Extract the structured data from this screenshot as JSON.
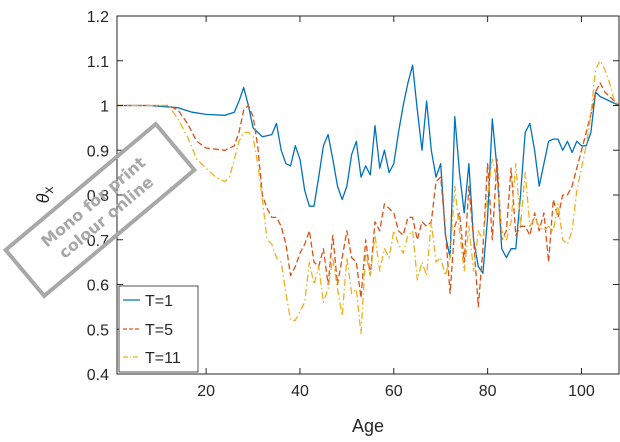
{
  "chart_data": {
    "type": "line",
    "title": "",
    "xlabel": "Age",
    "ylabel": "θ",
    "ylabel_subscript": "x",
    "xlim": [
      1,
      108
    ],
    "ylim": [
      0.4,
      1.2
    ],
    "xticks": [
      "20",
      "40",
      "60",
      "80",
      "100"
    ],
    "xtick_values": [
      20,
      40,
      60,
      80,
      100
    ],
    "yticks": [
      "0.4",
      "0.5",
      "0.6",
      "0.7",
      "0.8",
      "0.9",
      "1",
      "1.1",
      "1.2"
    ],
    "ytick_values": [
      0.4,
      0.5,
      0.6,
      0.7,
      0.8,
      0.9,
      1.0,
      1.1,
      1.2
    ],
    "grid": false,
    "legend_position": "bottom-left",
    "series": [
      {
        "name": "T=1",
        "color": "#0072BD",
        "style": "solid",
        "points": [
          [
            1,
            1.0
          ],
          [
            8,
            1.0
          ],
          [
            14,
            0.995
          ],
          [
            17,
            0.985
          ],
          [
            20,
            0.98
          ],
          [
            24,
            0.978
          ],
          [
            26,
            0.985
          ],
          [
            27,
            1.01
          ],
          [
            28,
            1.04
          ],
          [
            29,
            1.0
          ],
          [
            30,
            0.95
          ],
          [
            31,
            0.94
          ],
          [
            32,
            0.93
          ],
          [
            34,
            0.935
          ],
          [
            35,
            0.96
          ],
          [
            36,
            0.9
          ],
          [
            37,
            0.87
          ],
          [
            38,
            0.865
          ],
          [
            39,
            0.91
          ],
          [
            40,
            0.88
          ],
          [
            41,
            0.81
          ],
          [
            42,
            0.775
          ],
          [
            43,
            0.775
          ],
          [
            44,
            0.84
          ],
          [
            45,
            0.91
          ],
          [
            46,
            0.935
          ],
          [
            47,
            0.88
          ],
          [
            48,
            0.82
          ],
          [
            49,
            0.79
          ],
          [
            50,
            0.82
          ],
          [
            51,
            0.89
          ],
          [
            52,
            0.92
          ],
          [
            53,
            0.84
          ],
          [
            54,
            0.865
          ],
          [
            55,
            0.845
          ],
          [
            56,
            0.955
          ],
          [
            57,
            0.86
          ],
          [
            58,
            0.9
          ],
          [
            59,
            0.85
          ],
          [
            60,
            0.87
          ],
          [
            61,
            0.94
          ],
          [
            62,
            1.0
          ],
          [
            63,
            1.05
          ],
          [
            64,
            1.09
          ],
          [
            65,
            0.99
          ],
          [
            66,
            0.9
          ],
          [
            67,
            1.01
          ],
          [
            68,
            0.9
          ],
          [
            69,
            0.84
          ],
          [
            70,
            0.87
          ],
          [
            71,
            0.71
          ],
          [
            72,
            0.66
          ],
          [
            73,
            0.975
          ],
          [
            74,
            0.85
          ],
          [
            75,
            0.76
          ],
          [
            76,
            0.87
          ],
          [
            77,
            0.7
          ],
          [
            78,
            0.64
          ],
          [
            79,
            0.625
          ],
          [
            80,
            0.75
          ],
          [
            81,
            0.97
          ],
          [
            82,
            0.86
          ],
          [
            83,
            0.68
          ],
          [
            84,
            0.66
          ],
          [
            85,
            0.68
          ],
          [
            86,
            0.68
          ],
          [
            87,
            0.8
          ],
          [
            88,
            0.94
          ],
          [
            89,
            0.96
          ],
          [
            90,
            0.9
          ],
          [
            91,
            0.82
          ],
          [
            92,
            0.87
          ],
          [
            93,
            0.92
          ],
          [
            94,
            0.925
          ],
          [
            95,
            0.925
          ],
          [
            96,
            0.9
          ],
          [
            97,
            0.92
          ],
          [
            98,
            0.895
          ],
          [
            99,
            0.92
          ],
          [
            100,
            0.91
          ],
          [
            101,
            0.91
          ],
          [
            102,
            0.94
          ],
          [
            103,
            1.03
          ],
          [
            104,
            1.02
          ],
          [
            106,
            1.01
          ],
          [
            108,
            1.0
          ]
        ]
      },
      {
        "name": "T=5",
        "color": "#D95319",
        "style": "dashed",
        "points": [
          [
            1,
            1.0
          ],
          [
            12,
            1.0
          ],
          [
            14,
            0.99
          ],
          [
            16,
            0.96
          ],
          [
            18,
            0.92
          ],
          [
            20,
            0.905
          ],
          [
            24,
            0.9
          ],
          [
            26,
            0.91
          ],
          [
            27,
            0.94
          ],
          [
            28,
            0.99
          ],
          [
            29,
            1.0
          ],
          [
            30,
            0.975
          ],
          [
            31,
            0.91
          ],
          [
            32,
            0.8
          ],
          [
            33,
            0.77
          ],
          [
            34,
            0.75
          ],
          [
            35,
            0.75
          ],
          [
            36,
            0.73
          ],
          [
            37,
            0.69
          ],
          [
            38,
            0.62
          ],
          [
            39,
            0.64
          ],
          [
            40,
            0.67
          ],
          [
            41,
            0.69
          ],
          [
            42,
            0.72
          ],
          [
            43,
            0.65
          ],
          [
            44,
            0.64
          ],
          [
            45,
            0.68
          ],
          [
            46,
            0.6
          ],
          [
            47,
            0.71
          ],
          [
            48,
            0.6
          ],
          [
            49,
            0.66
          ],
          [
            50,
            0.72
          ],
          [
            51,
            0.66
          ],
          [
            52,
            0.65
          ],
          [
            53,
            0.57
          ],
          [
            54,
            0.7
          ],
          [
            55,
            0.62
          ],
          [
            56,
            0.74
          ],
          [
            57,
            0.72
          ],
          [
            58,
            0.78
          ],
          [
            59,
            0.77
          ],
          [
            60,
            0.76
          ],
          [
            61,
            0.72
          ],
          [
            62,
            0.71
          ],
          [
            63,
            0.75
          ],
          [
            64,
            0.75
          ],
          [
            65,
            0.7
          ],
          [
            66,
            0.74
          ],
          [
            67,
            0.73
          ],
          [
            68,
            0.74
          ],
          [
            69,
            0.83
          ],
          [
            70,
            0.84
          ],
          [
            71,
            0.72
          ],
          [
            72,
            0.58
          ],
          [
            73,
            0.73
          ],
          [
            74,
            0.76
          ],
          [
            75,
            0.65
          ],
          [
            76,
            0.82
          ],
          [
            77,
            0.7
          ],
          [
            78,
            0.55
          ],
          [
            79,
            0.68
          ],
          [
            80,
            0.87
          ],
          [
            81,
            0.7
          ],
          [
            82,
            0.88
          ],
          [
            83,
            0.7
          ],
          [
            84,
            0.72
          ],
          [
            85,
            0.86
          ],
          [
            86,
            0.71
          ],
          [
            87,
            0.73
          ],
          [
            88,
            0.73
          ],
          [
            89,
            0.71
          ],
          [
            90,
            0.76
          ],
          [
            91,
            0.72
          ],
          [
            92,
            0.76
          ],
          [
            93,
            0.65
          ],
          [
            94,
            0.79
          ],
          [
            95,
            0.75
          ],
          [
            96,
            0.8
          ],
          [
            97,
            0.8
          ],
          [
            98,
            0.82
          ],
          [
            99,
            0.86
          ],
          [
            100,
            0.9
          ],
          [
            101,
            0.94
          ],
          [
            102,
            0.98
          ],
          [
            103,
            1.03
          ],
          [
            104,
            1.05
          ],
          [
            105,
            1.03
          ],
          [
            106,
            1.02
          ],
          [
            108,
            1.0
          ]
        ]
      },
      {
        "name": "T=11",
        "color": "#EDB120",
        "style": "dashdot",
        "points": [
          [
            1,
            1.0
          ],
          [
            12,
            1.0
          ],
          [
            14,
            0.97
          ],
          [
            16,
            0.93
          ],
          [
            18,
            0.88
          ],
          [
            20,
            0.86
          ],
          [
            22,
            0.84
          ],
          [
            24,
            0.83
          ],
          [
            25,
            0.84
          ],
          [
            26,
            0.88
          ],
          [
            27,
            0.92
          ],
          [
            28,
            0.94
          ],
          [
            29,
            0.94
          ],
          [
            30,
            0.93
          ],
          [
            31,
            0.87
          ],
          [
            32,
            0.79
          ],
          [
            33,
            0.7
          ],
          [
            34,
            0.69
          ],
          [
            35,
            0.66
          ],
          [
            36,
            0.65
          ],
          [
            37,
            0.58
          ],
          [
            38,
            0.52
          ],
          [
            39,
            0.52
          ],
          [
            40,
            0.54
          ],
          [
            41,
            0.56
          ],
          [
            42,
            0.65
          ],
          [
            43,
            0.6
          ],
          [
            44,
            0.64
          ],
          [
            45,
            0.56
          ],
          [
            46,
            0.59
          ],
          [
            47,
            0.66
          ],
          [
            48,
            0.59
          ],
          [
            49,
            0.53
          ],
          [
            50,
            0.66
          ],
          [
            51,
            0.58
          ],
          [
            52,
            0.59
          ],
          [
            53,
            0.49
          ],
          [
            54,
            0.67
          ],
          [
            55,
            0.62
          ],
          [
            56,
            0.71
          ],
          [
            57,
            0.63
          ],
          [
            58,
            0.68
          ],
          [
            59,
            0.66
          ],
          [
            60,
            0.72
          ],
          [
            61,
            0.69
          ],
          [
            62,
            0.67
          ],
          [
            63,
            0.71
          ],
          [
            64,
            0.72
          ],
          [
            65,
            0.61
          ],
          [
            66,
            0.65
          ],
          [
            67,
            0.62
          ],
          [
            68,
            0.74
          ],
          [
            69,
            0.65
          ],
          [
            70,
            0.66
          ],
          [
            71,
            0.62
          ],
          [
            72,
            0.66
          ],
          [
            73,
            0.82
          ],
          [
            74,
            0.72
          ],
          [
            75,
            0.63
          ],
          [
            76,
            0.73
          ],
          [
            77,
            0.63
          ],
          [
            78,
            0.72
          ],
          [
            79,
            0.7
          ],
          [
            80,
            0.8
          ],
          [
            81,
            0.88
          ],
          [
            82,
            0.83
          ],
          [
            83,
            0.72
          ],
          [
            84,
            0.7
          ],
          [
            85,
            0.74
          ],
          [
            86,
            0.87
          ],
          [
            87,
            0.73
          ],
          [
            88,
            0.85
          ],
          [
            89,
            0.73
          ],
          [
            90,
            0.75
          ],
          [
            91,
            0.73
          ],
          [
            92,
            0.72
          ],
          [
            93,
            0.73
          ],
          [
            94,
            0.72
          ],
          [
            95,
            0.78
          ],
          [
            96,
            0.7
          ],
          [
            97,
            0.69
          ],
          [
            98,
            0.72
          ],
          [
            99,
            0.81
          ],
          [
            100,
            0.86
          ],
          [
            101,
            0.91
          ],
          [
            102,
            0.98
          ],
          [
            103,
            1.08
          ],
          [
            104,
            1.1
          ],
          [
            105,
            1.08
          ],
          [
            106,
            1.05
          ],
          [
            107,
            1.01
          ],
          [
            108,
            1.0
          ]
        ]
      }
    ]
  },
  "watermark": {
    "line1": "Mono for print",
    "line2": "colour online",
    "color": "#a8a8a8"
  }
}
